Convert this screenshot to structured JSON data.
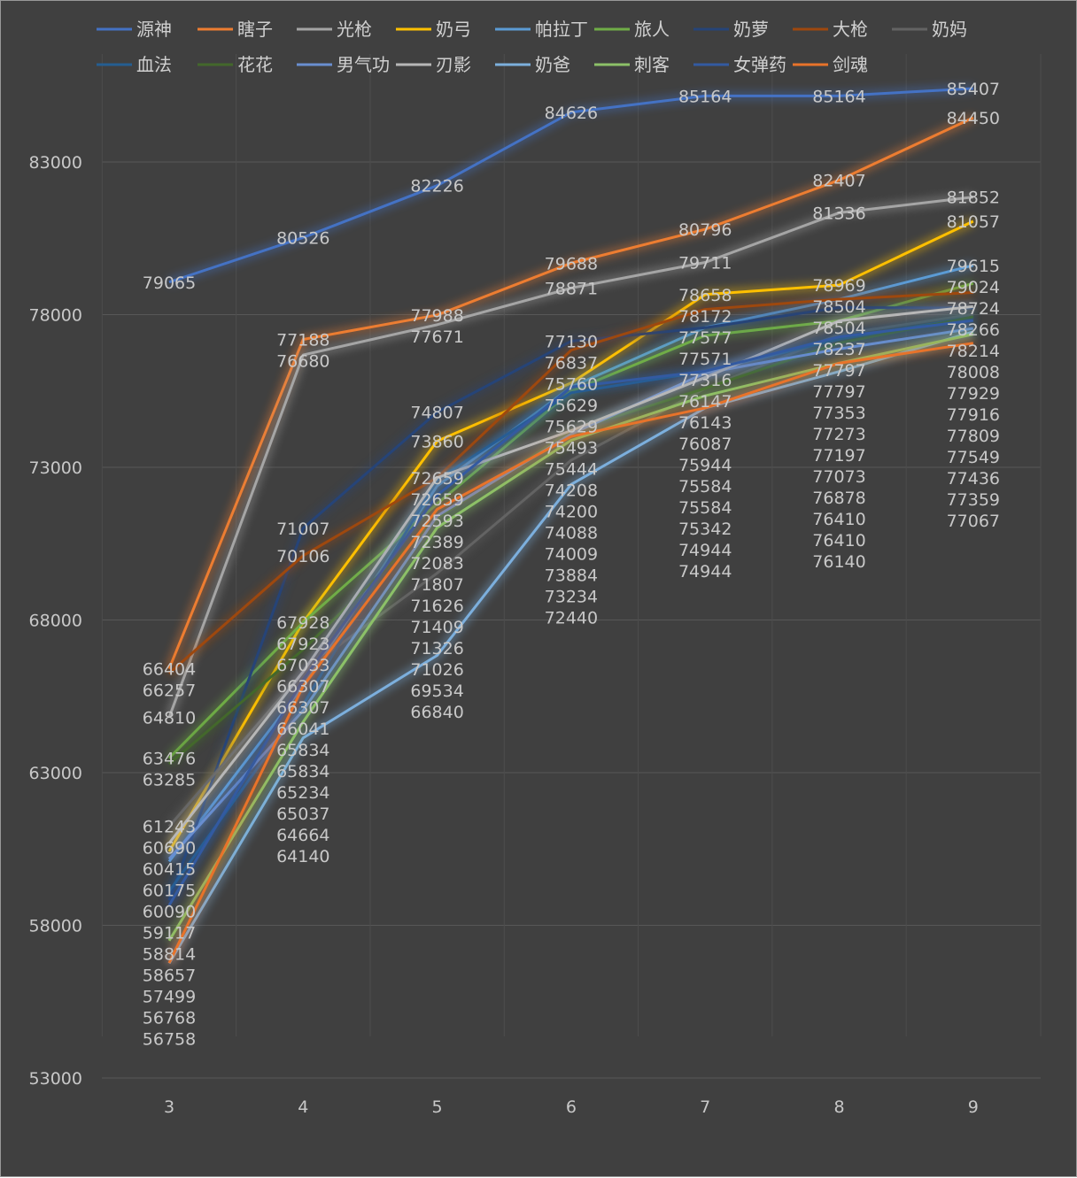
{
  "chart_data": {
    "type": "line",
    "title": "",
    "xlabel": "",
    "ylabel": "",
    "categories": [
      "3",
      "4",
      "5",
      "6",
      "7",
      "8",
      "9"
    ],
    "ylim": [
      53000,
      86000
    ],
    "yticks": [
      53000,
      58000,
      63000,
      68000,
      73000,
      78000,
      83000
    ],
    "grid": true,
    "legend_position": "top",
    "data_labels": true,
    "series": [
      {
        "name": "源神",
        "color": "#4472C4",
        "values": [
          79065,
          80526,
          82226,
          84626,
          85164,
          85164,
          85407
        ]
      },
      {
        "name": "瞎子",
        "color": "#ED7D31",
        "values": [
          66404,
          77188,
          77988,
          79688,
          80796,
          82407,
          84450
        ]
      },
      {
        "name": "光枪",
        "color": "#A5A5A5",
        "values": [
          64810,
          76680,
          77671,
          78871,
          79711,
          81336,
          81852
        ]
      },
      {
        "name": "奶弓",
        "color": "#FFC000",
        "values": [
          60415,
          67928,
          73860,
          75760,
          78658,
          78969,
          81057
        ]
      },
      {
        "name": "帕拉丁",
        "color": "#5B9BD5",
        "values": [
          60090,
          65834,
          72389,
          75629,
          77577,
          78504,
          79615
        ]
      },
      {
        "name": "旅人",
        "color": "#70AD47",
        "values": [
          63476,
          67923,
          71807,
          75493,
          77316,
          77797,
          79024
        ]
      },
      {
        "name": "奶萝",
        "color": "#264478",
        "values": [
          58814,
          71007,
          74807,
          77130,
          77571,
          78237,
          78214
        ]
      },
      {
        "name": "大枪",
        "color": "#9E480E",
        "values": [
          66257,
          70106,
          72659,
          76837,
          78172,
          78504,
          78724
        ]
      },
      {
        "name": "奶妈",
        "color": "#636363",
        "values": [
          61243,
          66307,
          69534,
          73234,
          75584,
          77353,
          78008
        ]
      },
      {
        "name": "血法",
        "color": "#255E91",
        "values": [
          59117,
          65234,
          72593,
          75444,
          76143,
          77197,
          77916
        ]
      },
      {
        "name": "花花",
        "color": "#43682B",
        "values": [
          63285,
          67033,
          71326,
          74208,
          75584,
          77073,
          77929
        ]
      },
      {
        "name": "男气功",
        "color": "#698ED0",
        "values": [
          60175,
          65037,
          71409,
          74088,
          76087,
          76878,
          77549
        ]
      },
      {
        "name": "刃影",
        "color": "#B7B7B7",
        "values": [
          60690,
          66307,
          72659,
          74200,
          75944,
          77797,
          78266
        ]
      },
      {
        "name": "奶爸",
        "color": "#7CAFDD",
        "values": [
          56758,
          64140,
          66840,
          72440,
          74944,
          76140,
          77436
        ]
      },
      {
        "name": "刺客",
        "color": "#8CC168",
        "values": [
          57499,
          64664,
          71026,
          73884,
          75342,
          76410,
          77359
        ]
      },
      {
        "name": "女弹药",
        "color": "#335AA1",
        "values": [
          58657,
          66041,
          72083,
          75629,
          76147,
          77273,
          77809
        ]
      },
      {
        "name": "剑魂",
        "color": "#E8732A",
        "values": [
          56768,
          65834,
          71626,
          74009,
          74944,
          76410,
          77067
        ]
      }
    ]
  }
}
